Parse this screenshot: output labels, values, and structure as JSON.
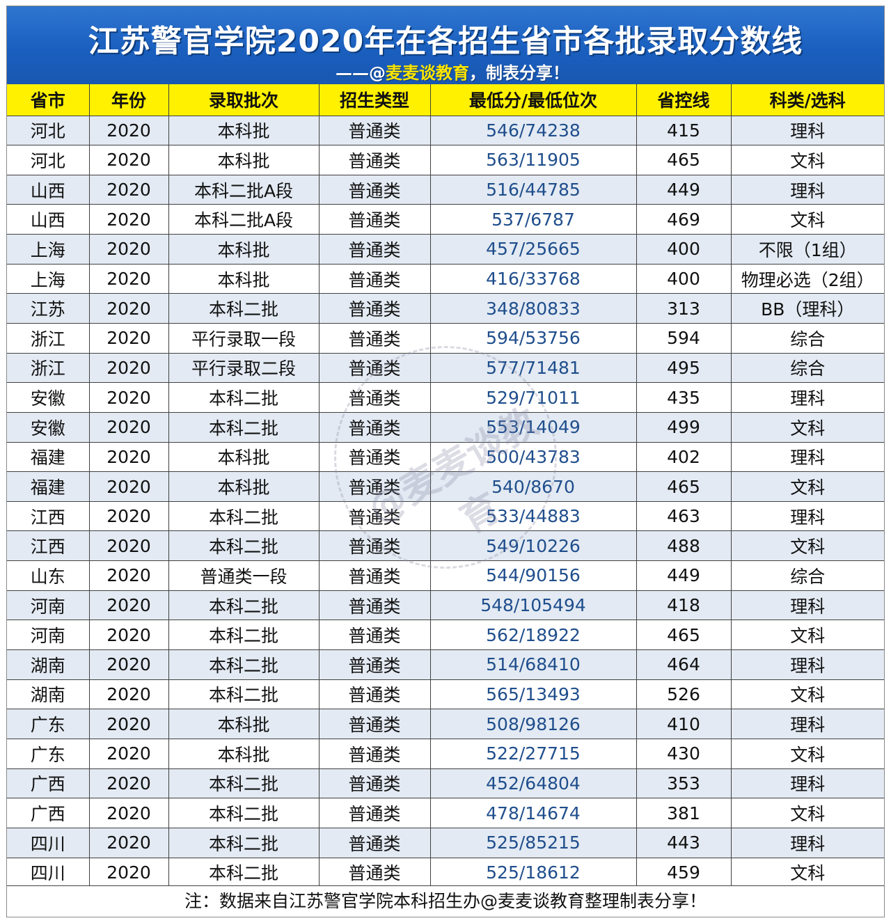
{
  "header": {
    "title": "江苏警官学院2020年在各招生省市各批录取分数线",
    "credit_prefix": "——@",
    "credit_highlight": "麦麦谈教育",
    "credit_suffix": "，制表分享！"
  },
  "table": {
    "columns": [
      "省市",
      "年份",
      "录取批次",
      "招生类型",
      "最低分/最低位次",
      "省控线",
      "科类/选科"
    ],
    "rows": [
      [
        "河北",
        "2020",
        "本科批",
        "普通类",
        "546/74238",
        "415",
        "理科"
      ],
      [
        "河北",
        "2020",
        "本科批",
        "普通类",
        "563/11905",
        "465",
        "文科"
      ],
      [
        "山西",
        "2020",
        "本科二批A段",
        "普通类",
        "516/44785",
        "449",
        "理科"
      ],
      [
        "山西",
        "2020",
        "本科二批A段",
        "普通类",
        "537/6787",
        "469",
        "文科"
      ],
      [
        "上海",
        "2020",
        "本科批",
        "普通类",
        "457/25665",
        "400",
        "不限（1组）"
      ],
      [
        "上海",
        "2020",
        "本科批",
        "普通类",
        "416/33768",
        "400",
        "物理必选（2组）"
      ],
      [
        "江苏",
        "2020",
        "本科二批",
        "普通类",
        "348/80833",
        "313",
        "BB（理科）"
      ],
      [
        "浙江",
        "2020",
        "平行录取一段",
        "普通类",
        "594/53756",
        "594",
        "综合"
      ],
      [
        "浙江",
        "2020",
        "平行录取二段",
        "普通类",
        "577/71481",
        "495",
        "综合"
      ],
      [
        "安徽",
        "2020",
        "本科二批",
        "普通类",
        "529/71011",
        "435",
        "理科"
      ],
      [
        "安徽",
        "2020",
        "本科二批",
        "普通类",
        "553/14049",
        "499",
        "文科"
      ],
      [
        "福建",
        "2020",
        "本科批",
        "普通类",
        "500/43783",
        "402",
        "理科"
      ],
      [
        "福建",
        "2020",
        "本科批",
        "普通类",
        "540/8670",
        "465",
        "文科"
      ],
      [
        "江西",
        "2020",
        "本科二批",
        "普通类",
        "533/44883",
        "463",
        "理科"
      ],
      [
        "江西",
        "2020",
        "本科二批",
        "普通类",
        "549/10226",
        "488",
        "文科"
      ],
      [
        "山东",
        "2020",
        "普通类一段",
        "普通类",
        "544/90156",
        "449",
        "综合"
      ],
      [
        "河南",
        "2020",
        "本科二批",
        "普通类",
        "548/105494",
        "418",
        "理科"
      ],
      [
        "河南",
        "2020",
        "本科二批",
        "普通类",
        "562/18922",
        "465",
        "文科"
      ],
      [
        "湖南",
        "2020",
        "本科二批",
        "普通类",
        "514/68410",
        "464",
        "理科"
      ],
      [
        "湖南",
        "2020",
        "本科二批",
        "普通类",
        "565/13493",
        "526",
        "文科"
      ],
      [
        "广东",
        "2020",
        "本科批",
        "普通类",
        "508/98126",
        "410",
        "理科"
      ],
      [
        "广东",
        "2020",
        "本科批",
        "普通类",
        "522/27715",
        "430",
        "文科"
      ],
      [
        "广西",
        "2020",
        "本科二批",
        "普通类",
        "452/64804",
        "353",
        "理科"
      ],
      [
        "广西",
        "2020",
        "本科二批",
        "普通类",
        "478/14674",
        "381",
        "文科"
      ],
      [
        "四川",
        "2020",
        "本科二批",
        "普通类",
        "525/85215",
        "443",
        "理科"
      ],
      [
        "四川",
        "2020",
        "本科二批",
        "普通类",
        "525/18612",
        "459",
        "文科"
      ]
    ]
  },
  "footer": {
    "note": "注：数据来自江苏警官学院本科招生办@麦麦谈教育整理制表分享！"
  },
  "watermark": {
    "text": "@麦麦谈教育"
  },
  "colors": {
    "banner": "#1a5fbf",
    "header_row": "#fff100",
    "stripe": "#e3eaf3",
    "score_text": "#1f4e8c",
    "credit_highlight": "#ffe600"
  }
}
